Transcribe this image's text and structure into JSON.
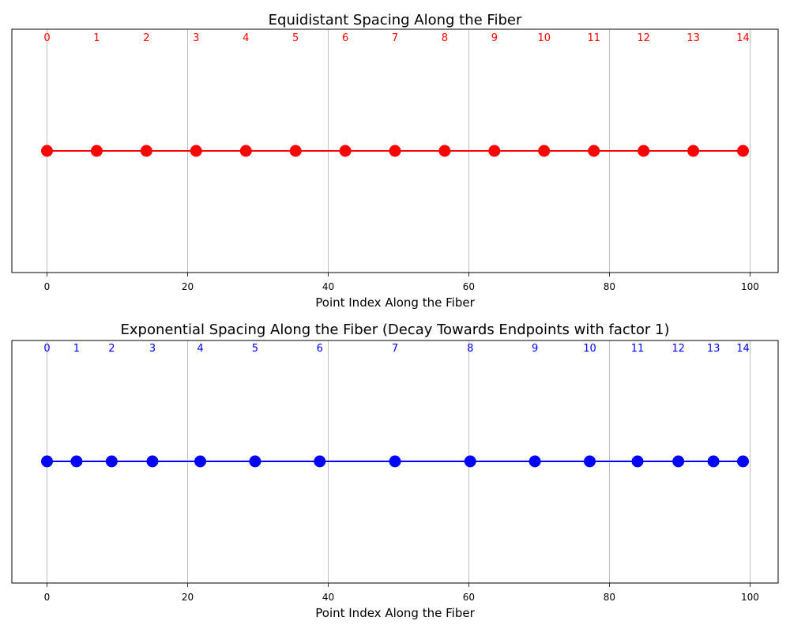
{
  "chart_data": [
    {
      "type": "scatter",
      "title": "Equidistant Spacing Along the Fiber",
      "xlabel": "Point Index Along the Fiber",
      "ylabel": "",
      "xlim": [
        -5,
        104
      ],
      "xticks": [
        0,
        20,
        40,
        60,
        80,
        100
      ],
      "grid": "x-only",
      "y_ticks_visible": false,
      "color": "#ff0000",
      "connected": true,
      "x": [
        0,
        7.07,
        14.14,
        21.21,
        28.29,
        35.36,
        42.43,
        49.5,
        56.57,
        63.64,
        70.71,
        77.79,
        84.86,
        91.93,
        99
      ],
      "labels": [
        "0",
        "1",
        "2",
        "3",
        "4",
        "5",
        "6",
        "7",
        "8",
        "9",
        "10",
        "11",
        "12",
        "13",
        "14"
      ]
    },
    {
      "type": "scatter",
      "title": "Exponential Spacing Along the Fiber (Decay Towards Endpoints with factor 1)",
      "xlabel": "Point Index Along the Fiber",
      "ylabel": "",
      "xlim": [
        -5,
        104
      ],
      "xticks": [
        0,
        20,
        40,
        60,
        80,
        100
      ],
      "grid": "x-only",
      "y_ticks_visible": false,
      "color": "#0000ff",
      "connected": true,
      "x": [
        0,
        4.2,
        9.2,
        15.0,
        21.8,
        29.6,
        38.8,
        49.5,
        60.2,
        69.4,
        77.2,
        84.0,
        89.8,
        94.8,
        99
      ],
      "labels": [
        "0",
        "1",
        "2",
        "3",
        "4",
        "5",
        "6",
        "7",
        "8",
        "9",
        "10",
        "11",
        "12",
        "13",
        "14"
      ]
    }
  ]
}
